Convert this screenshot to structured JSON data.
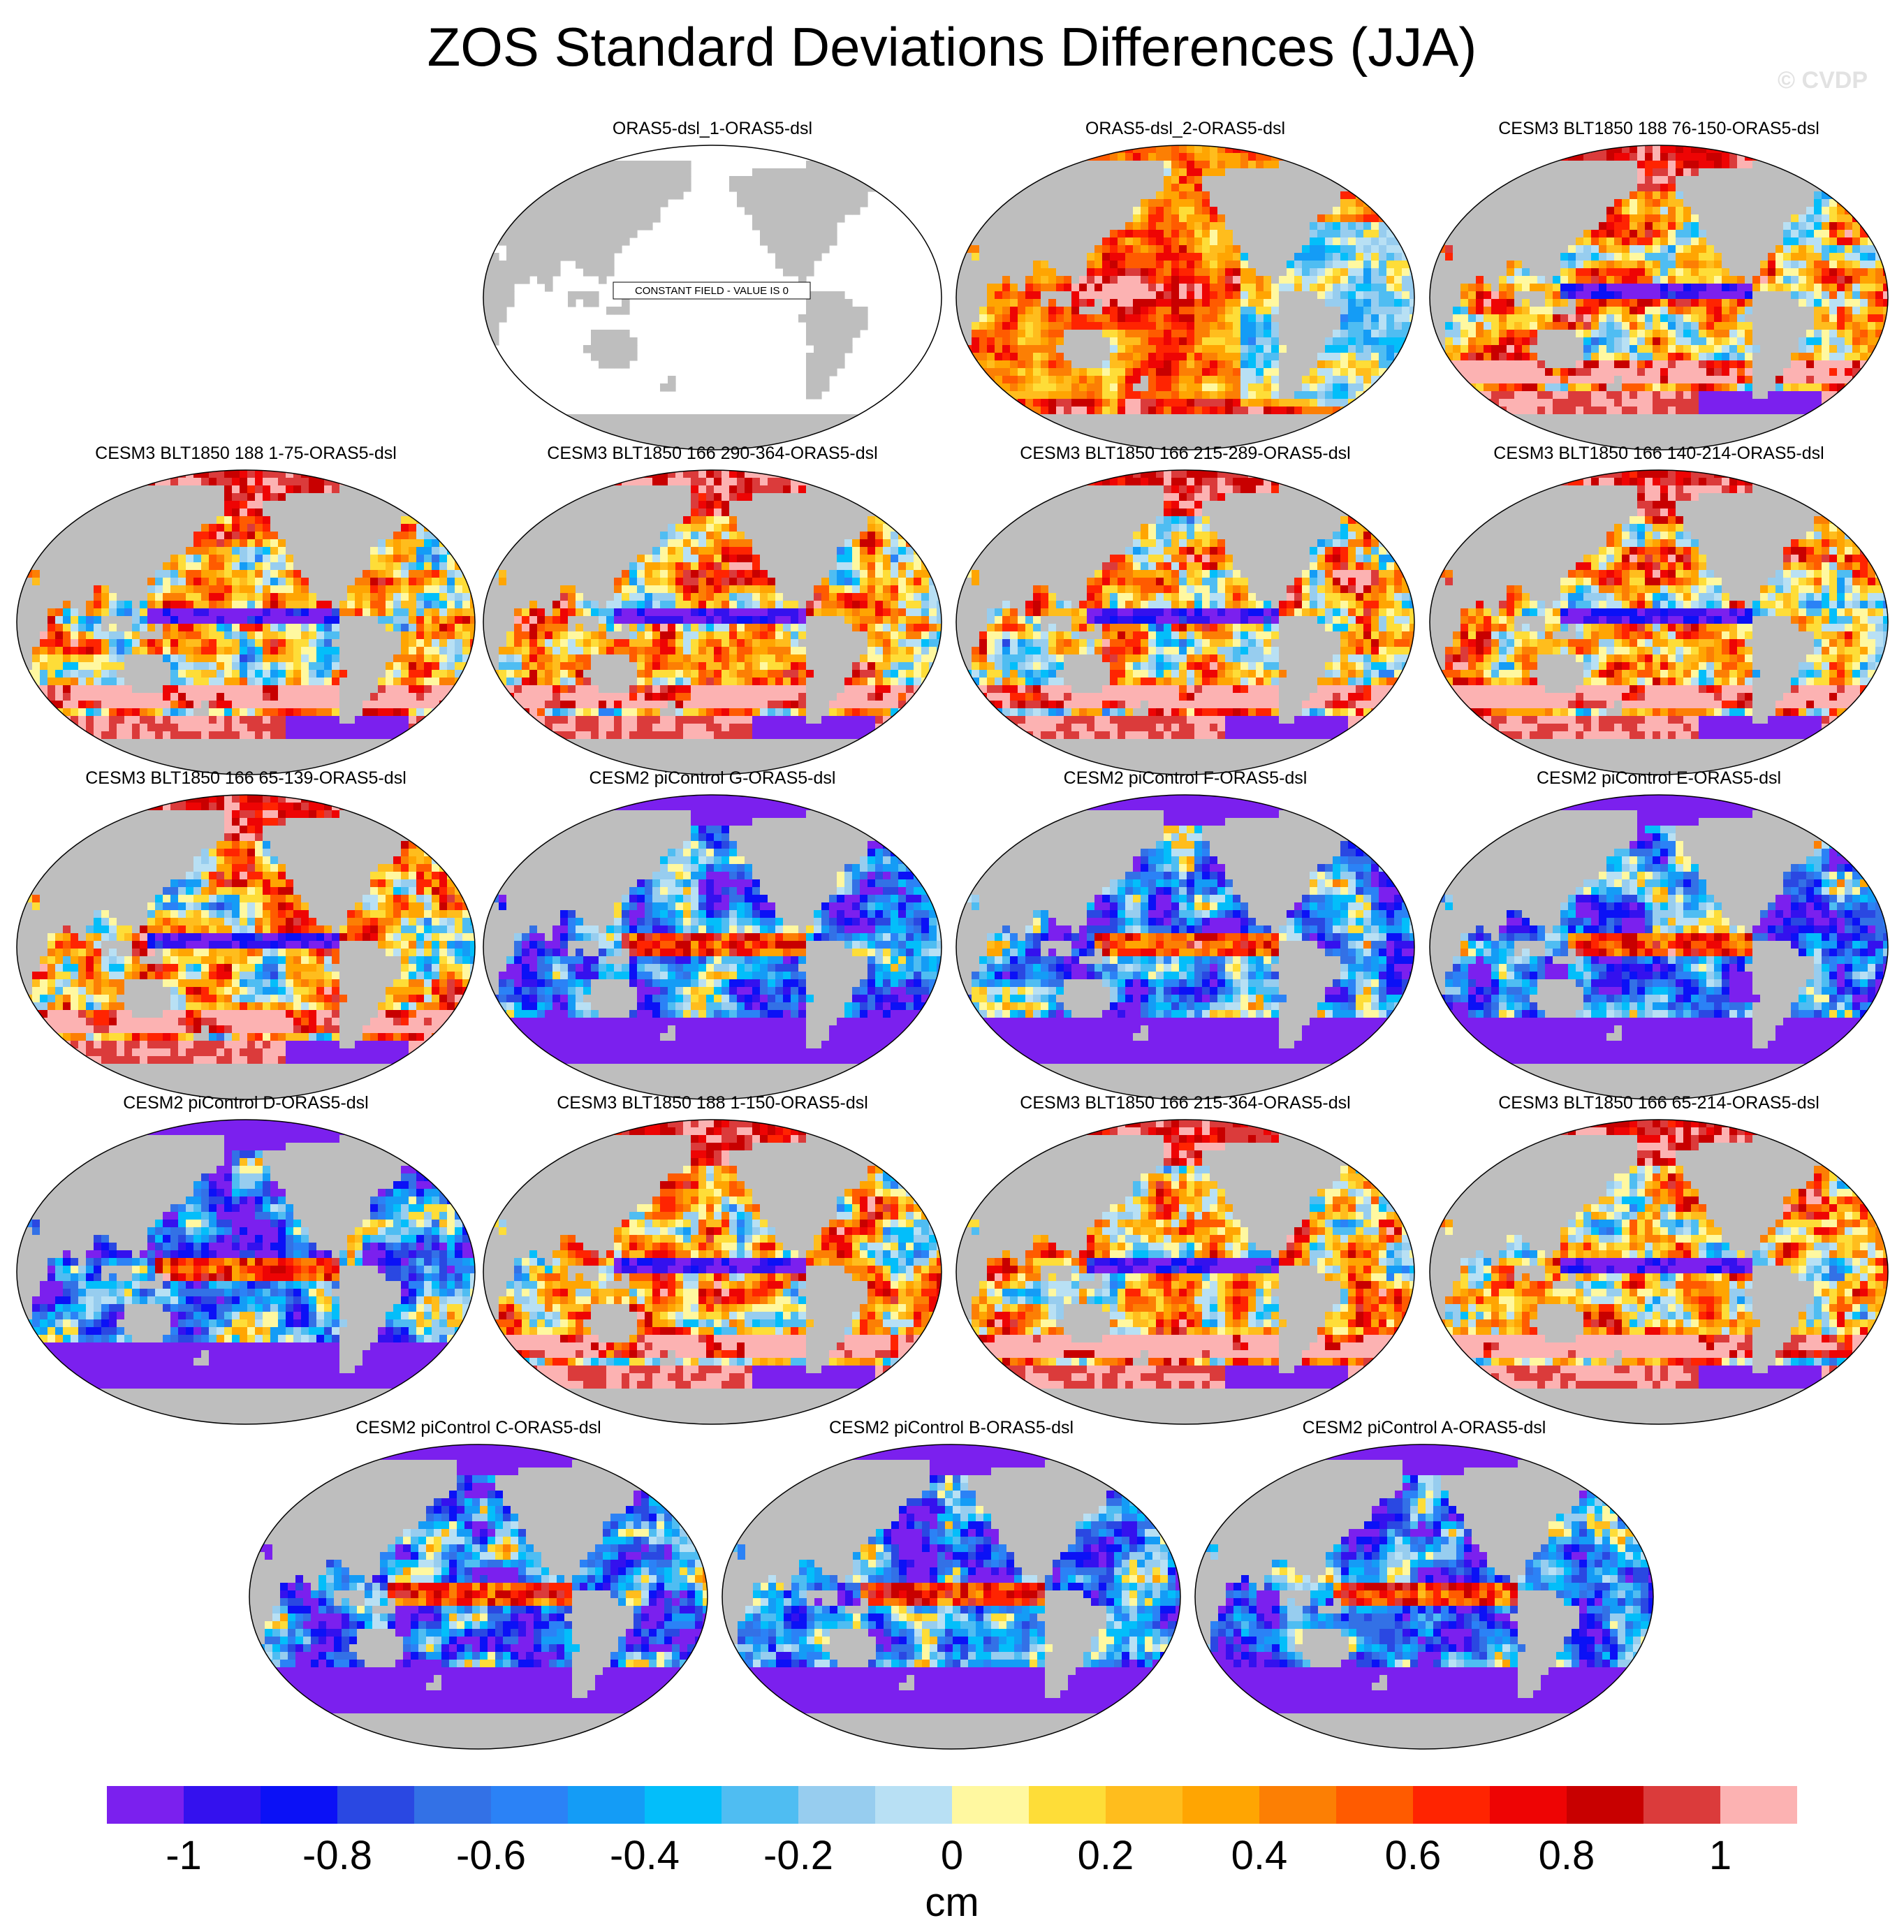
{
  "title": "ZOS Standard Deviations Differences (JJA)",
  "watermark": "© CVDP",
  "chart_data": {
    "type": "heatmap",
    "title": "ZOS Standard Deviations Differences (JJA)",
    "projection": "Robinson-like global map, centered on the Pacific",
    "panels": [
      {
        "title": "ORAS5-dsl_1-ORAS5-dsl",
        "pattern": "constant",
        "annotation": "CONSTANT FIELD - VALUE IS 0"
      },
      {
        "title": "ORAS5-dsl_2-ORAS5-dsl",
        "pattern": "oras"
      },
      {
        "title": "CESM3 BLT1850 188 76-150-ORAS5-dsl",
        "pattern": "cesm3"
      },
      {
        "title": "CESM3 BLT1850 188 1-75-ORAS5-dsl",
        "pattern": "cesm3"
      },
      {
        "title": "CESM3 BLT1850 166 290-364-ORAS5-dsl",
        "pattern": "cesm3"
      },
      {
        "title": "CESM3 BLT1850 166 215-289-ORAS5-dsl",
        "pattern": "cesm3"
      },
      {
        "title": "CESM3 BLT1850 166 140-214-ORAS5-dsl",
        "pattern": "cesm3"
      },
      {
        "title": "CESM3 BLT1850 166 65-139-ORAS5-dsl",
        "pattern": "cesm3"
      },
      {
        "title": "CESM2 piControl G-ORAS5-dsl",
        "pattern": "cesm2"
      },
      {
        "title": "CESM2 piControl F-ORAS5-dsl",
        "pattern": "cesm2"
      },
      {
        "title": "CESM2 piControl E-ORAS5-dsl",
        "pattern": "cesm2"
      },
      {
        "title": "CESM2 piControl D-ORAS5-dsl",
        "pattern": "cesm2"
      },
      {
        "title": "CESM3 BLT1850 188 1-150-ORAS5-dsl",
        "pattern": "cesm3"
      },
      {
        "title": "CESM3 BLT1850 166 215-364-ORAS5-dsl",
        "pattern": "cesm3"
      },
      {
        "title": "CESM3 BLT1850 166 65-214-ORAS5-dsl",
        "pattern": "cesm3"
      },
      {
        "title": "CESM2 piControl C-ORAS5-dsl",
        "pattern": "cesm2"
      },
      {
        "title": "CESM2 piControl B-ORAS5-dsl",
        "pattern": "cesm2"
      },
      {
        "title": "CESM2 piControl A-ORAS5-dsl",
        "pattern": "cesm2"
      }
    ],
    "colorbar": {
      "unit": "cm",
      "levels": [
        -1.1,
        -1,
        -0.9,
        -0.8,
        -0.7,
        -0.6,
        -0.5,
        -0.4,
        -0.3,
        -0.2,
        -0.1,
        0,
        0.1,
        0.2,
        0.3,
        0.4,
        0.5,
        0.6,
        0.7,
        0.8,
        0.9,
        1,
        1.1
      ],
      "colors": [
        "#7b20ee",
        "#3411ee",
        "#0b11f6",
        "#2a48e2",
        "#3371e6",
        "#2b82f6",
        "#149cf6",
        "#03befa",
        "#4fbdf2",
        "#97cdef",
        "#b8e0f4",
        "#fff8a0",
        "#fedd38",
        "#ffbd1d",
        "#ffa502",
        "#fc7f04",
        "#ff5b00",
        "#ff2401",
        "#ee0404",
        "#c80000",
        "#db3b3b",
        "#fcb2b2"
      ],
      "tick_labels": [
        "-1",
        "-0.8",
        "-0.6",
        "-0.4",
        "-0.2",
        "0",
        "0.2",
        "0.4",
        "0.6",
        "0.8",
        "1"
      ],
      "tick_values": [
        -1,
        -0.8,
        -0.6,
        -0.4,
        -0.2,
        0,
        0.2,
        0.4,
        0.6,
        0.8,
        1
      ]
    },
    "land_color": "#bebebe"
  }
}
